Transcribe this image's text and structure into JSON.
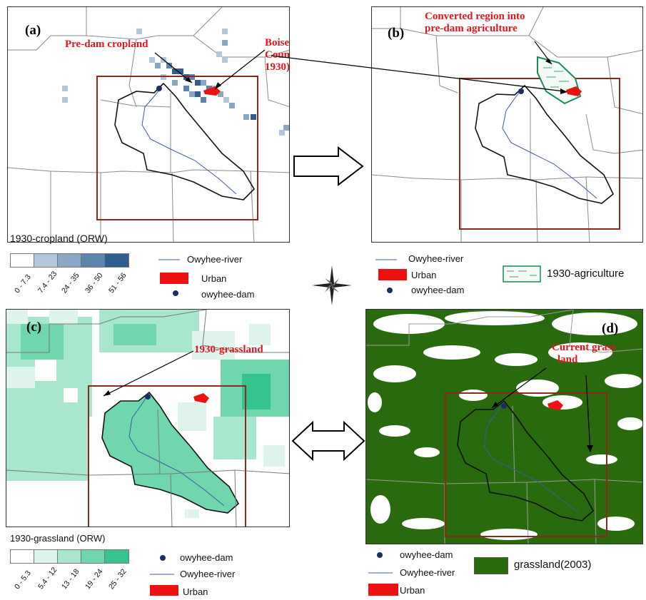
{
  "panel_a": {
    "label": "(a)",
    "annot_cropland": "Pre-dam cropland",
    "annot_city_lines": [
      "Boise city, Ada",
      "County (prior-",
      "1930)"
    ]
  },
  "panel_b": {
    "label": "(b)",
    "annot_lines": [
      "Converted region into",
      "pre-dam agriculture"
    ]
  },
  "panel_c": {
    "label": "(c)",
    "annot": "1930-grassland"
  },
  "panel_d": {
    "label": "(d)",
    "annot_lines": [
      "Current grass",
      "land"
    ]
  },
  "legend_a": {
    "title": "1930-cropland (ORW)",
    "classes": [
      "0 - 7.3",
      "7.4 - 23",
      "24 - 35",
      "36 - 50",
      "51 - 56"
    ],
    "colors": [
      "#ffffff",
      "#b3c6db",
      "#8aa8c6",
      "#5c84ad",
      "#2f5f8e"
    ],
    "river": "Owyhee-river",
    "urban": "Urban",
    "dam": "owyhee-dam"
  },
  "legend_b": {
    "river": "Owyhee-river",
    "urban": "Urban",
    "dam": "owyhee-dam",
    "agriculture": "1930-agriculture"
  },
  "legend_c": {
    "title": "1930-grassland (ORW)",
    "classes": [
      "0 - 5.3",
      "5.4 - 12",
      "13 - 18",
      "19 - 24",
      "25 - 32"
    ],
    "colors": [
      "#ffffff",
      "#dff5ec",
      "#a8e6cd",
      "#6fd6ae",
      "#35c48e"
    ],
    "dam": "owyhee-dam",
    "river": "Owyhee-river",
    "urban": "Urban"
  },
  "legend_d": {
    "dam": "owyhee-dam",
    "river": "Owyhee-river",
    "urban": "Urban",
    "grassland": "grassland(2003)"
  },
  "colors": {
    "urban": "#ee1111",
    "dam": "#1a2f5e",
    "river": "#3b5ba8",
    "boundary_box": "#8b2a1a",
    "grass_2003": "#2a6a0e",
    "annotation": "#e8141c",
    "agri_outline": "#1b8a5a"
  }
}
